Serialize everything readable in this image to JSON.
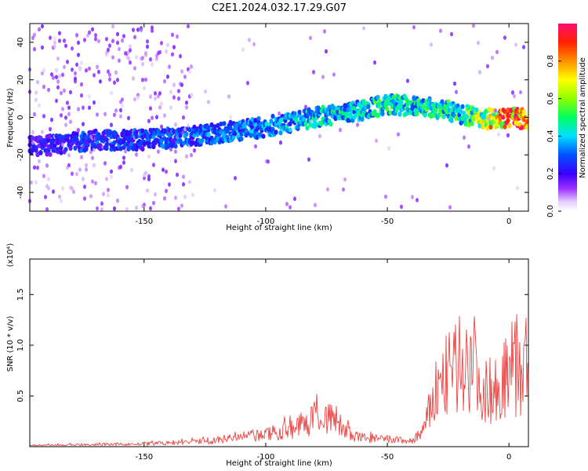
{
  "title": "C2E1.2024.032.17.29.G07",
  "chart_data": [
    {
      "type": "heatmap",
      "xlabel": "Height of straight line (km)",
      "ylabel": "Frequency (Hz)",
      "xlim": [
        -197,
        8
      ],
      "ylim": [
        -50,
        50
      ],
      "xticks": [
        -150,
        -100,
        -50,
        0
      ],
      "yticks": [
        -40,
        -20,
        0,
        20,
        40
      ],
      "colorbar": {
        "label": "Normalized spectral amplitude",
        "range": [
          0,
          1
        ],
        "ticks": [
          "0.0",
          "0.2",
          "0.4",
          "0.6",
          "0.8"
        ],
        "tick_values": [
          0.0,
          0.2,
          0.4,
          0.6,
          0.8
        ]
      },
      "ridge": {
        "x": [
          -190,
          -170,
          -150,
          -130,
          -110,
          -100,
          -90,
          -80,
          -70,
          -60,
          -50,
          -40,
          -30,
          -20,
          -10,
          0,
          8
        ],
        "frequency": [
          -15,
          -12,
          -12,
          -10,
          -7,
          -5,
          -3,
          0,
          2,
          4,
          7,
          6,
          5,
          2,
          -1,
          0,
          -1
        ],
        "amplitude": [
          0.25,
          0.3,
          0.3,
          0.33,
          0.35,
          0.38,
          0.42,
          0.45,
          0.45,
          0.47,
          0.5,
          0.47,
          0.52,
          0.5,
          0.7,
          0.95,
          0.9
        ]
      }
    },
    {
      "type": "line",
      "xlabel": "Height of straight line (km)",
      "ylabel": "SNR (10 * v/v)",
      "y_multiplier": "(x10⁴)",
      "xlim": [
        -197,
        8
      ],
      "ylim": [
        0,
        1.85
      ],
      "xticks": [
        -150,
        -100,
        -50,
        0
      ],
      "yticks": [
        0.5,
        1.0,
        1.5
      ],
      "color": "#e8312f",
      "envelope": {
        "x": [
          -197,
          -170,
          -150,
          -135,
          -120,
          -110,
          -100,
          -90,
          -80,
          -75,
          -70,
          -65,
          -55,
          -45,
          -40,
          -35,
          -30,
          -25,
          -20,
          -15,
          -10,
          -5,
          0,
          5,
          8
        ],
        "y": [
          0.02,
          0.03,
          0.04,
          0.06,
          0.1,
          0.14,
          0.18,
          0.26,
          0.4,
          0.45,
          0.38,
          0.15,
          0.12,
          0.1,
          0.08,
          0.25,
          0.85,
          1.1,
          1.2,
          1.35,
          0.8,
          0.95,
          1.05,
          1.15,
          1.3
        ]
      }
    }
  ]
}
